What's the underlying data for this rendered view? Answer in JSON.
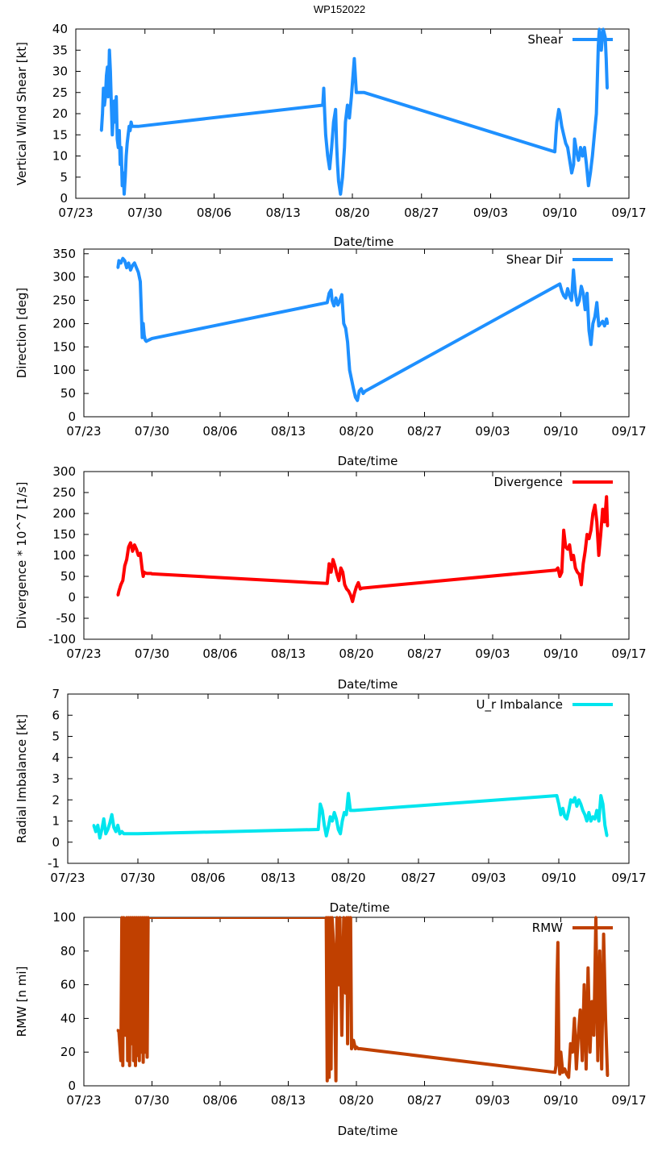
{
  "title": "WP152022",
  "colors": {
    "shear": "#1E90FF",
    "shear_dir": "#1E90FF",
    "divergence": "#FF0000",
    "imbalance": "#00E5EE",
    "rmw": "#C04000"
  },
  "chart_data": [
    {
      "type": "line",
      "id": "shear",
      "xlabel": "Date/time",
      "ylabel": "Vertical Wind Shear [kt]",
      "legend": "Shear",
      "xlim": [
        0,
        56
      ],
      "ylim": [
        0,
        40
      ],
      "xticks": [
        0,
        7,
        14,
        21,
        28,
        35,
        42,
        49,
        56
      ],
      "xtick_labels": [
        "07/23",
        "07/30",
        "08/06",
        "08/13",
        "08/20",
        "08/27",
        "09/03",
        "09/10",
        "09/17"
      ],
      "yticks": [
        0,
        5,
        10,
        15,
        20,
        25,
        30,
        35,
        40
      ],
      "ytick_labels": [
        "0",
        "5",
        "10",
        "15",
        "20",
        "25",
        "30",
        "35",
        "40"
      ],
      "x": [
        2.6,
        2.7,
        2.8,
        2.9,
        3.0,
        3.1,
        3.2,
        3.3,
        3.4,
        3.5,
        3.6,
        3.7,
        3.8,
        3.9,
        4.0,
        4.1,
        4.2,
        4.3,
        4.4,
        4.5,
        4.6,
        4.7,
        4.8,
        4.9,
        5.0,
        5.1,
        5.2,
        5.3,
        5.4,
        5.5,
        5.6,
        5.7,
        5.8,
        6.0,
        6.2,
        6.3,
        25.0,
        25.1,
        25.2,
        25.3,
        25.5,
        25.7,
        25.9,
        26.1,
        26.3,
        26.4,
        26.5,
        26.6,
        26.8,
        27.0,
        27.2,
        27.3,
        27.5,
        27.7,
        27.9,
        28.1,
        28.2,
        28.4,
        28.6,
        28.8,
        29.0,
        29.2,
        48.5,
        48.6,
        48.7,
        48.9,
        49.0,
        49.2,
        49.4,
        49.6,
        49.8,
        50.0,
        50.2,
        50.4,
        50.5,
        50.7,
        50.9,
        51.1,
        51.3,
        51.5,
        51.7,
        51.9,
        52.1,
        52.3,
        52.5,
        52.7,
        52.8,
        52.9,
        53.0,
        53.1,
        53.2,
        53.4,
        53.6,
        53.7,
        53.8
      ],
      "y": [
        16,
        20,
        26,
        22,
        24,
        29,
        31,
        24,
        35,
        30,
        22,
        15,
        20,
        23,
        18,
        24,
        14,
        12,
        16,
        8,
        12,
        3,
        6,
        1,
        5,
        10,
        13,
        15,
        17,
        16,
        18,
        17,
        17,
        17,
        17,
        17,
        22,
        26,
        20,
        15,
        10,
        7,
        12,
        18,
        21,
        13,
        8,
        4,
        1,
        5,
        12,
        18,
        22,
        19,
        24,
        30,
        33,
        25,
        25,
        25,
        25,
        25,
        11,
        15,
        18,
        21,
        20,
        17,
        15,
        13,
        12,
        9,
        6,
        8,
        14,
        11,
        9,
        12,
        10,
        12,
        8,
        3,
        6,
        10,
        15,
        20,
        28,
        36,
        40,
        38,
        35,
        40,
        38,
        33,
        26
      ]
    },
    {
      "type": "line",
      "id": "shear_dir",
      "xlabel": "Date/time",
      "ylabel": "Direction [deg]",
      "legend": "Shear Dir",
      "xlim": [
        0,
        56
      ],
      "ylim": [
        0,
        360
      ],
      "xticks": [
        0,
        7,
        14,
        21,
        28,
        35,
        42,
        49,
        56
      ],
      "xtick_labels": [
        "07/23",
        "07/30",
        "08/06",
        "08/13",
        "08/20",
        "08/27",
        "09/03",
        "09/10",
        "09/17"
      ],
      "yticks": [
        0,
        50,
        100,
        150,
        200,
        250,
        300,
        350
      ],
      "ytick_labels": [
        "0",
        "50",
        "100",
        "150",
        "200",
        "250",
        "300",
        "350"
      ],
      "x": [
        3.5,
        3.6,
        3.8,
        4.0,
        4.2,
        4.4,
        4.6,
        4.8,
        5.0,
        5.2,
        5.4,
        5.6,
        5.8,
        6.0,
        6.1,
        6.2,
        6.3,
        6.4,
        6.5,
        6.6,
        6.7,
        6.8,
        7.0,
        25.0,
        25.2,
        25.4,
        25.5,
        25.7,
        25.9,
        26.1,
        26.3,
        26.5,
        26.7,
        26.9,
        27.1,
        27.2,
        27.3,
        27.5,
        27.7,
        27.9,
        28.1,
        28.3,
        28.5,
        28.7,
        28.9,
        48.9,
        49.1,
        49.3,
        49.5,
        49.7,
        49.9,
        50.1,
        50.3,
        50.5,
        50.7,
        50.9,
        51.1,
        51.3,
        51.5,
        51.7,
        51.9,
        52.1,
        52.3,
        52.5,
        52.7,
        52.9,
        53.1,
        53.3,
        53.5,
        53.7,
        53.8
      ],
      "y": [
        320,
        335,
        330,
        340,
        335,
        320,
        330,
        315,
        325,
        330,
        320,
        310,
        290,
        170,
        200,
        175,
        165,
        162,
        163,
        164,
        165,
        166,
        168,
        245,
        265,
        272,
        250,
        238,
        255,
        240,
        250,
        262,
        200,
        190,
        160,
        130,
        100,
        80,
        60,
        42,
        35,
        55,
        60,
        50,
        55,
        285,
        270,
        260,
        255,
        275,
        260,
        250,
        315,
        265,
        240,
        250,
        280,
        265,
        230,
        265,
        185,
        155,
        200,
        215,
        245,
        195,
        200,
        205,
        195,
        210,
        200
      ]
    },
    {
      "type": "line",
      "id": "divergence",
      "xlabel": "Date/time",
      "ylabel": "Divergence * 10^7 [1/s]",
      "legend": "Divergence",
      "xlim": [
        0,
        56
      ],
      "ylim": [
        -100,
        300
      ],
      "xticks": [
        0,
        7,
        14,
        21,
        28,
        35,
        42,
        49,
        56
      ],
      "xtick_labels": [
        "07/23",
        "07/30",
        "08/06",
        "08/13",
        "08/20",
        "08/27",
        "09/03",
        "09/10",
        "09/17"
      ],
      "yticks": [
        -100,
        -50,
        0,
        50,
        100,
        150,
        200,
        250,
        300
      ],
      "ytick_labels": [
        "-100",
        "-50",
        "0",
        "50",
        "100",
        "150",
        "200",
        "250",
        "300"
      ],
      "x": [
        3.5,
        3.6,
        3.8,
        4.0,
        4.2,
        4.4,
        4.6,
        4.8,
        5.0,
        5.2,
        5.4,
        5.6,
        5.8,
        6.0,
        6.1,
        6.2,
        6.3,
        6.5,
        6.7,
        6.9,
        7.0,
        25.0,
        25.2,
        25.4,
        25.6,
        25.8,
        26.0,
        26.2,
        26.4,
        26.6,
        26.8,
        27.0,
        27.2,
        27.4,
        27.6,
        27.8,
        28.0,
        28.2,
        28.4,
        28.6,
        48.5,
        48.7,
        48.9,
        49.1,
        49.3,
        49.5,
        49.7,
        49.9,
        50.1,
        50.3,
        50.5,
        50.7,
        50.9,
        51.1,
        51.3,
        51.5,
        51.7,
        51.9,
        52.1,
        52.3,
        52.5,
        52.7,
        52.9,
        53.1,
        53.3,
        53.5,
        53.7,
        53.8
      ],
      "y": [
        5,
        15,
        30,
        40,
        75,
        90,
        120,
        130,
        110,
        125,
        115,
        100,
        105,
        65,
        50,
        60,
        58,
        57,
        57,
        57,
        56,
        33,
        80,
        60,
        90,
        75,
        55,
        40,
        70,
        60,
        30,
        20,
        15,
        5,
        -10,
        10,
        25,
        35,
        20,
        22,
        65,
        70,
        50,
        60,
        160,
        120,
        115,
        125,
        90,
        100,
        70,
        60,
        55,
        30,
        80,
        110,
        150,
        140,
        160,
        200,
        220,
        180,
        100,
        150,
        210,
        180,
        240,
        170
      ]
    },
    {
      "type": "line",
      "id": "imbalance",
      "xlabel": "Date/time",
      "ylabel": "Radial Imbalance [kt]",
      "legend": "U_r Imbalance",
      "xlim": [
        0,
        56
      ],
      "ylim": [
        -1,
        7
      ],
      "xticks": [
        0,
        7,
        14,
        21,
        28,
        35,
        42,
        49,
        56
      ],
      "xtick_labels": [
        "07/23",
        "07/30",
        "08/06",
        "08/13",
        "08/20",
        "08/27",
        "09/03",
        "09/10",
        "09/17"
      ],
      "yticks": [
        -1,
        0,
        1,
        2,
        3,
        4,
        5,
        6,
        7
      ],
      "ytick_labels": [
        "-1",
        "0",
        "1",
        "2",
        "3",
        "4",
        "5",
        "6",
        "7"
      ],
      "x": [
        2.6,
        2.8,
        3.0,
        3.2,
        3.4,
        3.6,
        3.8,
        4.0,
        4.2,
        4.4,
        4.6,
        4.8,
        5.0,
        5.2,
        5.4,
        5.6,
        5.8,
        6.0,
        6.5,
        7.0,
        25.0,
        25.2,
        25.4,
        25.6,
        25.8,
        26.0,
        26.2,
        26.4,
        26.6,
        26.8,
        27.0,
        27.2,
        27.4,
        27.6,
        27.8,
        28.0,
        28.2,
        28.4,
        28.6,
        48.8,
        49.0,
        49.2,
        49.4,
        49.6,
        49.8,
        50.0,
        50.2,
        50.4,
        50.6,
        50.8,
        51.0,
        51.2,
        51.4,
        51.6,
        51.8,
        52.0,
        52.2,
        52.4,
        52.6,
        52.8,
        53.0,
        53.2,
        53.4,
        53.6,
        53.8
      ],
      "y": [
        0.8,
        0.5,
        0.8,
        0.2,
        0.6,
        1.1,
        0.4,
        0.6,
        0.9,
        1.3,
        0.7,
        0.5,
        0.8,
        0.4,
        0.5,
        0.4,
        0.4,
        0.4,
        0.4,
        0.4,
        0.6,
        1.8,
        1.5,
        0.8,
        0.3,
        0.7,
        1.2,
        1.0,
        1.4,
        1.1,
        0.6,
        0.4,
        1.0,
        1.4,
        1.3,
        2.3,
        1.5,
        1.5,
        1.5,
        2.2,
        1.8,
        1.3,
        1.6,
        1.2,
        1.1,
        1.5,
        2.0,
        1.9,
        2.1,
        1.7,
        2.0,
        1.8,
        1.5,
        1.3,
        1.0,
        1.4,
        1.0,
        1.2,
        1.1,
        1.5,
        1.0,
        2.2,
        1.8,
        0.8,
        0.3
      ]
    },
    {
      "type": "line",
      "id": "rmw",
      "xlabel": "Date/time",
      "ylabel": "RMW [n mi]",
      "legend": "RMW",
      "xlim": [
        0,
        56
      ],
      "ylim": [
        0,
        100
      ],
      "xticks": [
        0,
        7,
        14,
        21,
        28,
        35,
        42,
        49,
        56
      ],
      "xtick_labels": [
        "07/23",
        "07/30",
        "08/06",
        "08/13",
        "08/20",
        "08/27",
        "09/03",
        "09/10",
        "09/17"
      ],
      "yticks": [
        0,
        20,
        40,
        60,
        80,
        100
      ],
      "ytick_labels": [
        "0",
        "20",
        "40",
        "60",
        "80",
        "100"
      ],
      "x": [
        3.5,
        3.6,
        3.8,
        3.9,
        4.0,
        4.1,
        4.3,
        4.4,
        4.5,
        4.6,
        4.7,
        4.8,
        4.9,
        5.0,
        5.1,
        5.2,
        5.3,
        5.4,
        5.5,
        5.6,
        5.7,
        5.8,
        5.9,
        6.0,
        6.1,
        6.2,
        6.3,
        6.4,
        6.5,
        6.6,
        24.9,
        25.0,
        25.1,
        25.2,
        25.3,
        25.4,
        25.5,
        25.7,
        25.9,
        26.0,
        26.2,
        26.3,
        26.5,
        26.7,
        26.9,
        27.0,
        27.1,
        27.2,
        27.3,
        27.4,
        27.5,
        27.7,
        27.9,
        28.0,
        28.2,
        28.4,
        48.4,
        48.5,
        48.6,
        48.7,
        48.8,
        48.9,
        49.0,
        49.2,
        49.4,
        49.6,
        49.8,
        50.0,
        50.2,
        50.4,
        50.6,
        50.8,
        51.0,
        51.2,
        51.4,
        51.6,
        51.8,
        52.0,
        52.2,
        52.4,
        52.6,
        52.8,
        53.0,
        53.2,
        53.4,
        53.6,
        53.8
      ],
      "y": [
        33,
        32,
        15,
        100,
        12,
        100,
        30,
        100,
        15,
        100,
        12,
        100,
        25,
        100,
        15,
        100,
        12,
        100,
        18,
        100,
        15,
        100,
        20,
        100,
        14,
        100,
        20,
        100,
        17,
        100,
        100,
        3,
        100,
        5,
        100,
        10,
        100,
        80,
        3,
        100,
        60,
        100,
        30,
        100,
        55,
        100,
        25,
        100,
        60,
        100,
        22,
        27,
        22,
        23,
        22,
        22,
        8,
        12,
        60,
        85,
        15,
        7,
        20,
        8,
        10,
        7,
        5,
        25,
        20,
        40,
        10,
        30,
        45,
        15,
        60,
        10,
        70,
        20,
        50,
        30,
        100,
        15,
        80,
        10,
        90,
        40,
        6
      ]
    }
  ]
}
